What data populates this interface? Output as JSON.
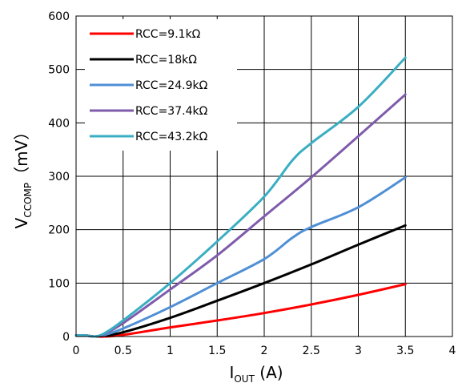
{
  "chart_data": {
    "type": "line",
    "title": "",
    "xlabel": {
      "main": "I",
      "sub": "OUT",
      "unit": " (A)"
    },
    "ylabel": {
      "main": "V",
      "sub": "CCOMP",
      "unit": "（mV）"
    },
    "xlim": [
      0,
      4
    ],
    "ylim": [
      0,
      600
    ],
    "xticks": [
      "0",
      "0.5",
      "1",
      "1.5",
      "2",
      "2.5",
      "3",
      "3.5",
      "4"
    ],
    "yticks": [
      "0",
      "100",
      "200",
      "300",
      "400",
      "500",
      "600"
    ],
    "grid": true,
    "legend_position": "top-left",
    "series": [
      {
        "name": "RCC=9.1kΩ",
        "color": "#ff0000",
        "points": [
          [
            0,
            2
          ],
          [
            0.1,
            2
          ],
          [
            0.2,
            0
          ],
          [
            0.3,
            0
          ],
          [
            0.5,
            3
          ],
          [
            1,
            17
          ],
          [
            1.5,
            30
          ],
          [
            2,
            44
          ],
          [
            2.5,
            60
          ],
          [
            3,
            78
          ],
          [
            3.5,
            98
          ]
        ]
      },
      {
        "name": "RCC=18kΩ",
        "color": "#000000",
        "points": [
          [
            0,
            2
          ],
          [
            0.1,
            2
          ],
          [
            0.2,
            0
          ],
          [
            0.3,
            2
          ],
          [
            0.5,
            8
          ],
          [
            1,
            35
          ],
          [
            1.5,
            67
          ],
          [
            2,
            100
          ],
          [
            2.5,
            135
          ],
          [
            3,
            172
          ],
          [
            3.5,
            208
          ]
        ]
      },
      {
        "name": "RCC=24.9kΩ",
        "color": "#4f8fd6",
        "points": [
          [
            0,
            2
          ],
          [
            0.1,
            2
          ],
          [
            0.2,
            0
          ],
          [
            0.3,
            3
          ],
          [
            0.5,
            15
          ],
          [
            1,
            55
          ],
          [
            1.5,
            100
          ],
          [
            2,
            145
          ],
          [
            2.3,
            185
          ],
          [
            2.5,
            205
          ],
          [
            3,
            242
          ],
          [
            3.5,
            298
          ]
        ]
      },
      {
        "name": "RCC=37.4kΩ",
        "color": "#7f5bab",
        "points": [
          [
            0,
            2
          ],
          [
            0.1,
            2
          ],
          [
            0.2,
            0
          ],
          [
            0.3,
            5
          ],
          [
            0.5,
            25
          ],
          [
            1,
            88
          ],
          [
            1.5,
            152
          ],
          [
            2,
            225
          ],
          [
            2.5,
            298
          ],
          [
            3,
            375
          ],
          [
            3.5,
            453
          ]
        ]
      },
      {
        "name": "RCC=43.2kΩ",
        "color": "#3aaec2",
        "points": [
          [
            0,
            2
          ],
          [
            0.1,
            2
          ],
          [
            0.2,
            0
          ],
          [
            0.3,
            6
          ],
          [
            0.5,
            30
          ],
          [
            1,
            100
          ],
          [
            1.5,
            178
          ],
          [
            2,
            262
          ],
          [
            2.3,
            330
          ],
          [
            2.5,
            362
          ],
          [
            3,
            430
          ],
          [
            3.5,
            522
          ]
        ]
      }
    ]
  }
}
